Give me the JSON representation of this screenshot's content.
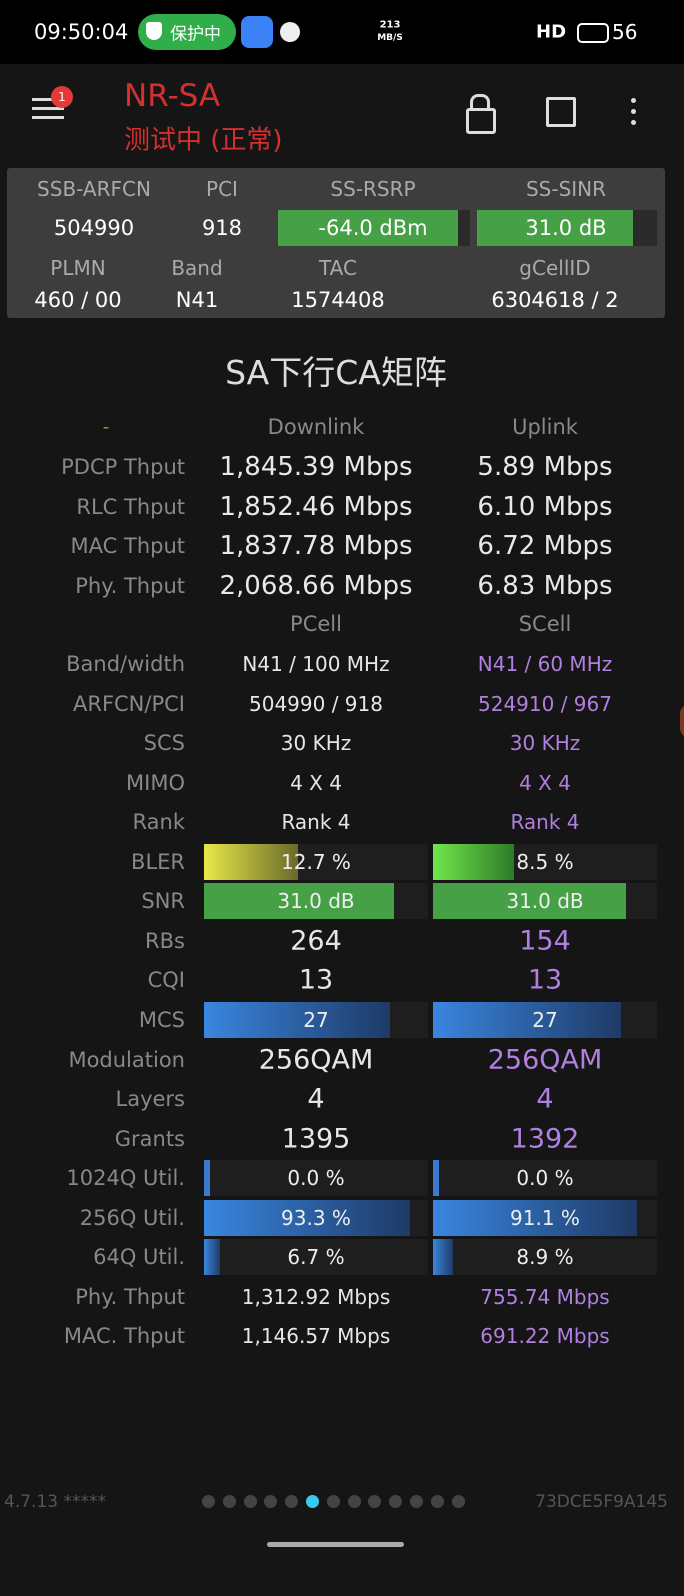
{
  "status_bar": {
    "time": "09:50:04",
    "badge": "保护中",
    "speed_value": "213",
    "speed_unit": "MB/S",
    "hd": "HD",
    "battery": "56"
  },
  "header": {
    "notification_count": "1",
    "title": "NR-SA",
    "subtitle": "测试中 (正常)"
  },
  "summary": {
    "row1_headers": [
      "SSB-ARFCN",
      "PCI",
      "SS-RSRP",
      "SS-SINR"
    ],
    "row1_values": [
      "504990",
      "918",
      "-64.0 dBm",
      "31.0 dB"
    ],
    "row2_headers": [
      "PLMN",
      "Band",
      "TAC",
      "gCellID"
    ],
    "row2_values": [
      "460 / 00",
      "N41",
      "1574408",
      "6304618 / 2"
    ]
  },
  "section_title": "SA下行CA矩阵",
  "throughput": {
    "header": [
      "-",
      "Downlink",
      "Uplink"
    ],
    "rows": [
      [
        "PDCP Thput",
        "1,845.39 Mbps",
        "5.89 Mbps"
      ],
      [
        "RLC Thput",
        "1,852.46 Mbps",
        "6.10 Mbps"
      ],
      [
        "MAC Thput",
        "1,837.78 Mbps",
        "6.72 Mbps"
      ],
      [
        "Phy. Thput",
        "2,068.66 Mbps",
        "6.83 Mbps"
      ]
    ]
  },
  "cells": {
    "header": [
      "PCell",
      "SCell"
    ],
    "rows": [
      [
        "Band/width",
        "N41 / 100 MHz",
        "N41 / 60 MHz"
      ],
      [
        "ARFCN/PCI",
        "504990 / 918",
        "524910 / 967"
      ],
      [
        "SCS",
        "30 KHz",
        "30 KHz"
      ],
      [
        "MIMO",
        "4 X 4",
        "4 X 4"
      ],
      [
        "Rank",
        "Rank 4",
        "Rank 4"
      ],
      [
        "BLER",
        "12.7 %",
        "8.5 %"
      ],
      [
        "SNR",
        "31.0 dB",
        "31.0 dB"
      ],
      [
        "RBs",
        "264",
        "154"
      ],
      [
        "CQI",
        "13",
        "13"
      ],
      [
        "MCS",
        "27",
        "27"
      ],
      [
        "Modulation",
        "256QAM",
        "256QAM"
      ],
      [
        "Layers",
        "4",
        "4"
      ],
      [
        "Grants",
        "1395",
        "1392"
      ],
      [
        "1024Q Util.",
        "0.0 %",
        "0.0 %"
      ],
      [
        "256Q Util.",
        "93.3 %",
        "91.1 %"
      ],
      [
        "64Q Util.",
        "6.7 %",
        "8.9 %"
      ],
      [
        "Phy. Thput",
        "1,312.92 Mbps",
        "755.74 Mbps"
      ],
      [
        "MAC. Thput",
        "1,146.57 Mbps",
        "691.22 Mbps"
      ]
    ]
  },
  "footer": {
    "version": "4.7.13 *****",
    "device_id": "73DCE5F9A145"
  }
}
